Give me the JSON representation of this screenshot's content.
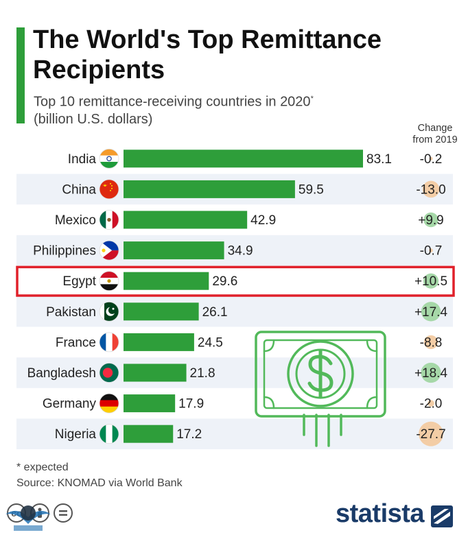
{
  "header": {
    "title": "The World's Top Remittance Recipients",
    "subtitle_line1": "Top 10 remittance-receiving countries in 2020",
    "subtitle_mark": "*",
    "subtitle_line2": "(billion U.S. dollars)",
    "change_header_line1": "Change",
    "change_header_line2": "from 2019"
  },
  "chart_data": {
    "type": "bar",
    "orientation": "horizontal",
    "categories": [
      "India",
      "China",
      "Mexico",
      "Philippines",
      "Egypt",
      "Pakistan",
      "France",
      "Bangladesh",
      "Germany",
      "Nigeria"
    ],
    "values": [
      83.1,
      59.5,
      42.9,
      34.9,
      29.6,
      26.1,
      24.5,
      21.8,
      17.9,
      17.2
    ],
    "value_labels": [
      "83.1",
      "59.5",
      "42.9",
      "34.9",
      "29.6",
      "26.1",
      "24.5",
      "21.8",
      "17.9",
      "17.2"
    ],
    "change_from_2019": [
      -0.2,
      -13.0,
      9.9,
      -0.7,
      10.5,
      17.4,
      -8.8,
      18.4,
      -2.0,
      -27.7
    ],
    "change_labels": [
      "-0.2",
      "-13.0",
      "+9.9",
      "-0.7",
      "+10.5",
      "+17.4",
      "-8.8",
      "+18.4",
      "-2.0",
      "-27.7"
    ],
    "highlighted_category": "Egypt",
    "xlim": [
      0,
      83.1
    ],
    "grid": false,
    "legend": "none"
  },
  "flags": [
    "india-flag-icon",
    "china-flag-icon",
    "mexico-flag-icon",
    "philippines-flag-icon",
    "egypt-flag-icon",
    "pakistan-flag-icon",
    "france-flag-icon",
    "bangladesh-flag-icon",
    "germany-flag-icon",
    "nigeria-flag-icon"
  ],
  "colors": {
    "bar": "#2e9e3a",
    "accent": "#2e9e3a",
    "highlight_border": "#e0202a",
    "stripe": "#eef2f8",
    "positive_bubble": "#a6d8a8",
    "negative_bubble": "#f3cda6",
    "brand": "#1a3b68"
  },
  "footer": {
    "footnote": "* expected",
    "source": "Source: KNOMAD via World Bank",
    "brand": "statista",
    "license_icons": [
      "cc-icon",
      "attribution-icon",
      "no-derivatives-icon"
    ],
    "watermark_icon": "forum-logo-icon"
  },
  "decorations": {
    "illustration": "banknote-dollar-icon"
  }
}
